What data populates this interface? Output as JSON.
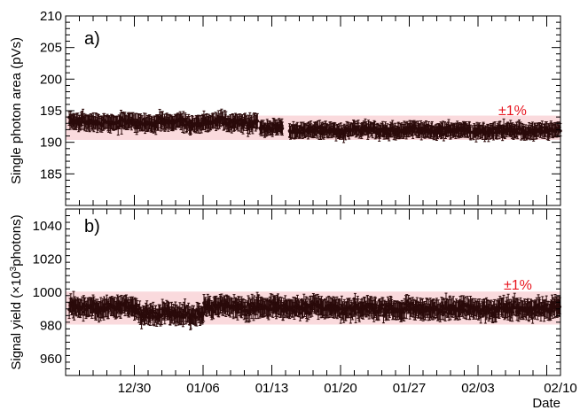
{
  "chart_data": [
    {
      "type": "scatter",
      "panel_label": "a)",
      "ylabel": "Single photon area (pVs)",
      "ylim": [
        180,
        210
      ],
      "yticks": [
        185,
        190,
        195,
        200,
        205,
        210
      ],
      "band": {
        "center": 192.3,
        "label": "±1%",
        "color": "#fadadd",
        "label_color": "#e8141e"
      },
      "series": [
        {
          "color": "#2a0a0a",
          "segments": [
            {
              "x0": 0.5,
              "x1": 28.0,
              "center": 193.2,
              "amp": 0.9,
              "err": 1.1
            },
            {
              "x0": 28.2,
              "x1": 31.6,
              "center": 192.2,
              "amp": 0.8,
              "err": 1.0
            },
            {
              "x0": 32.5,
              "x1": 59.0,
              "center": 191.9,
              "amp": 0.8,
              "err": 1.0
            },
            {
              "x0": 59.2,
              "x1": 72.0,
              "center": 191.8,
              "amp": 0.8,
              "err": 1.0
            }
          ]
        }
      ]
    },
    {
      "type": "scatter",
      "panel_label": "b)",
      "ylabel": "Signal yield (×10³photons)",
      "ylim": [
        950,
        1050
      ],
      "yticks": [
        960,
        980,
        1000,
        1020,
        1040
      ],
      "band": {
        "center": 990.5,
        "label": "±1%",
        "color": "#fadadd",
        "label_color": "#e8141e"
      },
      "series": [
        {
          "color": "#2a0a0a",
          "segments": [
            {
              "x0": 0.5,
              "x1": 10.5,
              "center": 991.0,
              "amp": 4.0,
              "err": 5.0
            },
            {
              "x0": 10.5,
              "x1": 20.0,
              "center": 987.0,
              "amp": 4.5,
              "err": 5.0
            },
            {
              "x0": 20.0,
              "x1": 29.0,
              "center": 991.0,
              "amp": 4.5,
              "err": 5.0
            },
            {
              "x0": 29.0,
              "x1": 40.0,
              "center": 991.0,
              "amp": 4.0,
              "err": 5.0
            },
            {
              "x0": 40.0,
              "x1": 72.0,
              "center": 990.0,
              "amp": 4.5,
              "err": 5.0
            }
          ]
        }
      ]
    }
  ],
  "x_axis": {
    "xlabel": "Date",
    "xlim": [
      0,
      72
    ],
    "tick_labels": [
      "12/30",
      "01/06",
      "01/13",
      "01/20",
      "01/27",
      "02/03",
      "02/10"
    ],
    "tick_positions": [
      10,
      20,
      30,
      40,
      50,
      60,
      72
    ]
  }
}
